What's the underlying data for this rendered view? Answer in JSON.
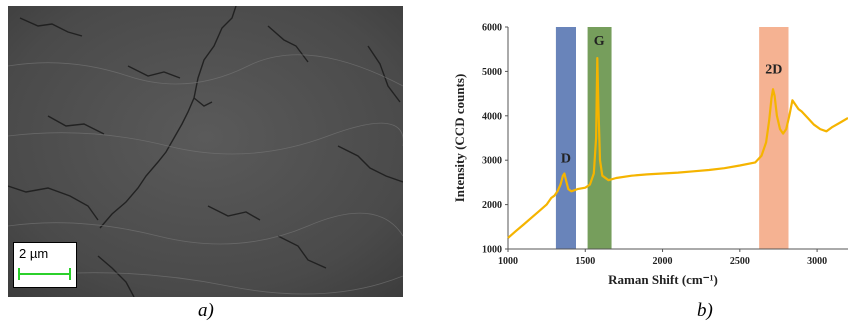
{
  "panels": {
    "a": {
      "caption": "a)",
      "scale_bar_label": "2 µm",
      "scale_bar_color": "#2bd02b"
    },
    "b": {
      "caption": "b)"
    }
  },
  "chart_data": {
    "type": "line",
    "title": "",
    "xlabel": "Raman Shift (cm⁻¹)",
    "ylabel": "Intensity (CCD counts)",
    "xlim": [
      1000,
      3200
    ],
    "ylim": [
      1000,
      6000
    ],
    "x_ticks": [
      "1000",
      "1500",
      "2000",
      "2500",
      "3000"
    ],
    "y_ticks": [
      "1000",
      "2000",
      "3000",
      "4000",
      "5000",
      "6000"
    ],
    "grid": false,
    "line_color": "#f5b400",
    "series": [
      {
        "points": [
          [
            1000,
            1250
          ],
          [
            1050,
            1400
          ],
          [
            1100,
            1550
          ],
          [
            1150,
            1700
          ],
          [
            1200,
            1850
          ],
          [
            1250,
            2000
          ],
          [
            1280,
            2150
          ],
          [
            1300,
            2200
          ],
          [
            1320,
            2300
          ],
          [
            1340,
            2450
          ],
          [
            1355,
            2650
          ],
          [
            1365,
            2700
          ],
          [
            1375,
            2550
          ],
          [
            1390,
            2350
          ],
          [
            1410,
            2300
          ],
          [
            1450,
            2350
          ],
          [
            1500,
            2380
          ],
          [
            1530,
            2450
          ],
          [
            1555,
            2700
          ],
          [
            1570,
            3500
          ],
          [
            1578,
            5300
          ],
          [
            1585,
            4200
          ],
          [
            1595,
            3000
          ],
          [
            1610,
            2650
          ],
          [
            1650,
            2550
          ],
          [
            1700,
            2600
          ],
          [
            1800,
            2650
          ],
          [
            1900,
            2680
          ],
          [
            2000,
            2700
          ],
          [
            2100,
            2720
          ],
          [
            2200,
            2750
          ],
          [
            2300,
            2780
          ],
          [
            2400,
            2820
          ],
          [
            2500,
            2880
          ],
          [
            2600,
            2950
          ],
          [
            2640,
            3100
          ],
          [
            2670,
            3400
          ],
          [
            2690,
            3900
          ],
          [
            2705,
            4400
          ],
          [
            2715,
            4600
          ],
          [
            2725,
            4450
          ],
          [
            2740,
            4000
          ],
          [
            2760,
            3700
          ],
          [
            2780,
            3600
          ],
          [
            2800,
            3700
          ],
          [
            2820,
            4000
          ],
          [
            2840,
            4350
          ],
          [
            2860,
            4250
          ],
          [
            2880,
            4150
          ],
          [
            2900,
            4100
          ],
          [
            2940,
            3950
          ],
          [
            2980,
            3800
          ],
          [
            3020,
            3700
          ],
          [
            3060,
            3650
          ],
          [
            3100,
            3750
          ],
          [
            3150,
            3850
          ],
          [
            3200,
            3950
          ]
        ]
      }
    ],
    "bands": [
      {
        "label": "D",
        "x_start": 1310,
        "x_end": 1440,
        "color": "#4f6fae",
        "label_x": 1375,
        "label_y": 2950
      },
      {
        "label": "G",
        "x_start": 1515,
        "x_end": 1670,
        "color": "#5e8d3f",
        "label_x": 1590,
        "label_y": 5600
      },
      {
        "label": "2D",
        "x_start": 2625,
        "x_end": 2815,
        "color": "#f3a57f",
        "label_x": 2720,
        "label_y": 4950
      }
    ]
  }
}
